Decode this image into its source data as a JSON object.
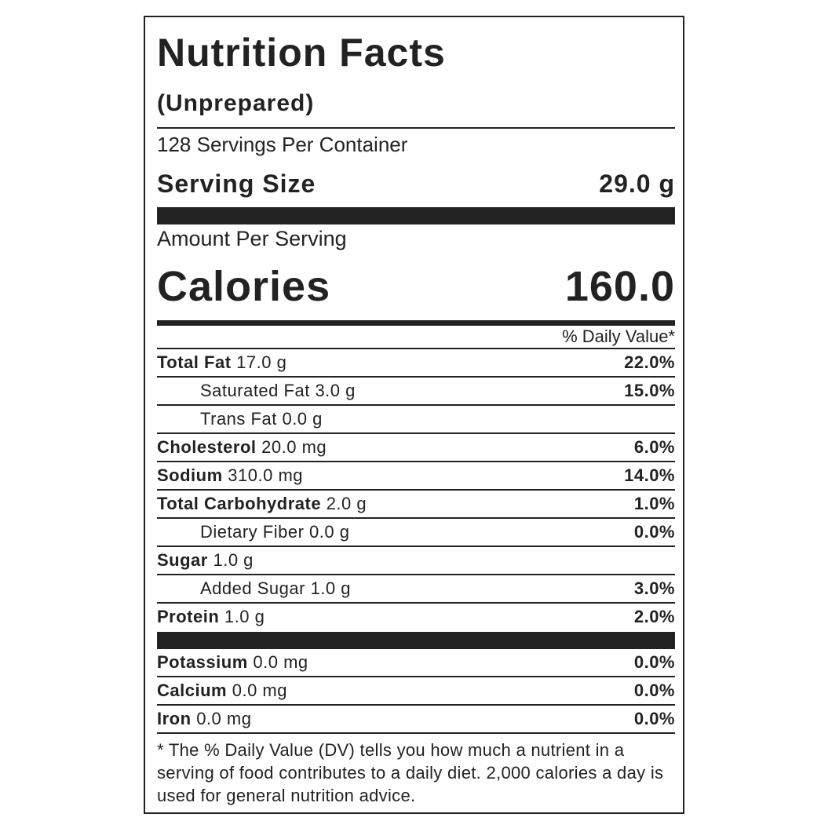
{
  "title": "Nutrition Facts",
  "subtitle": "(Unprepared)",
  "servings": "128 Servings Per Container",
  "serving_size": {
    "label": "Serving Size",
    "value": "29.0 g"
  },
  "amount_per_serving": "Amount Per Serving",
  "calories": {
    "label": "Calories",
    "value": "160.0"
  },
  "daily_value_header": "% Daily Value*",
  "nutrients": [
    {
      "name": "Total Fat",
      "amount": "17.0 g",
      "dv": "22.0%"
    },
    {
      "name": "Saturated Fat",
      "amount": "3.0 g",
      "dv": "15.0%"
    },
    {
      "name": "Trans Fat",
      "amount": "0.0 g"
    },
    {
      "name": "Cholesterol",
      "amount": "20.0 mg",
      "dv": "6.0%"
    },
    {
      "name": "Sodium",
      "amount": "310.0 mg",
      "dv": "14.0%"
    },
    {
      "name": "Total Carbohydrate",
      "amount": "2.0 g",
      "dv": "1.0%"
    },
    {
      "name": "Dietary Fiber",
      "amount": "0.0 g",
      "dv": "0.0%"
    },
    {
      "name": "Sugar",
      "amount": "1.0 g"
    },
    {
      "name": "Added Sugar",
      "amount": "1.0 g",
      "dv": "3.0%"
    },
    {
      "name": "Protein",
      "amount": "1.0 g",
      "dv": "2.0%"
    }
  ],
  "minerals": [
    {
      "name": "Potassium",
      "amount": "0.0 mg",
      "dv": "0.0%"
    },
    {
      "name": "Calcium",
      "amount": "0.0 mg",
      "dv": "0.0%"
    },
    {
      "name": "Iron",
      "amount": "0.0 mg",
      "dv": "0.0%"
    }
  ],
  "footnote": "* The % Daily Value (DV) tells you how much a nutrient in a serving of food contributes to a daily diet. 2,000 calories a day is used for general nutrition advice."
}
